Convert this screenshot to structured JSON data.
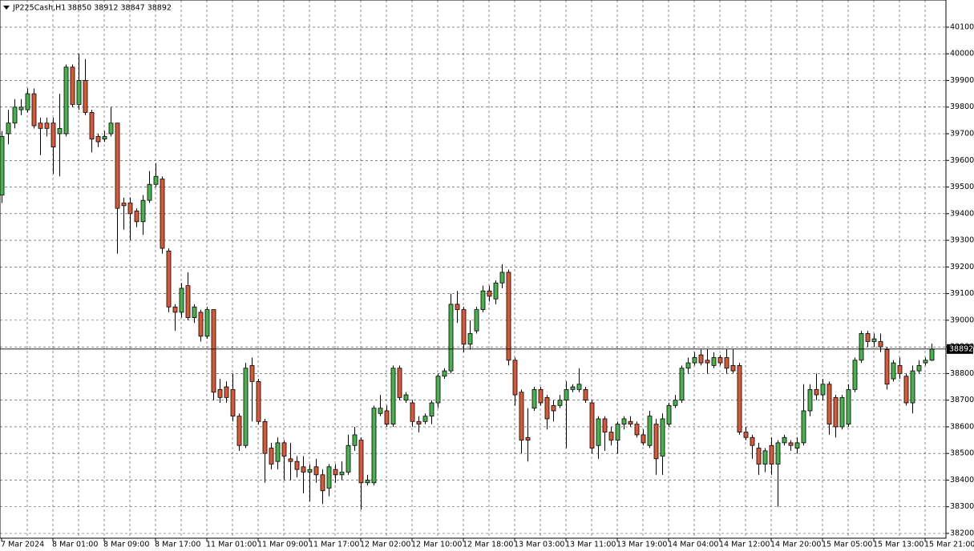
{
  "chart_data": {
    "type": "candlestick",
    "title": "JP225Cash,H1",
    "header_values": "38850 38912 38847 38892",
    "categories": [
      "7 Mar 2024",
      null,
      null,
      null,
      null,
      null,
      null,
      null,
      "8 Mar 01:00",
      null,
      null,
      null,
      null,
      null,
      null,
      null,
      "8 Mar 09:00",
      null,
      null,
      null,
      null,
      null,
      null,
      null,
      "8 Mar 17:00",
      null,
      null,
      null,
      null,
      null,
      null,
      null,
      "11 Mar 01:00",
      null,
      null,
      null,
      null,
      null,
      null,
      null,
      "11 Mar 09:00",
      null,
      null,
      null,
      null,
      null,
      null,
      null,
      "11 Mar 17:00",
      null,
      null,
      null,
      null,
      null,
      null,
      null,
      "12 Mar 02:00",
      null,
      null,
      null,
      null,
      null,
      null,
      null,
      "12 Mar 10:00",
      null,
      null,
      null,
      null,
      null,
      null,
      null,
      "12 Mar 18:00",
      null,
      null,
      null,
      null,
      null,
      null,
      null,
      "13 Mar 03:00",
      null,
      null,
      null,
      null,
      null,
      null,
      null,
      "13 Mar 11:00",
      null,
      null,
      null,
      null,
      null,
      null,
      null,
      "13 Mar 19:00",
      null,
      null,
      null,
      null,
      null,
      null,
      null,
      "14 Mar 04:00",
      null,
      null,
      null,
      null,
      null,
      null,
      null,
      "14 Mar 12:00",
      null,
      null,
      null,
      null,
      null,
      null,
      null,
      "14 Mar 20:00",
      null,
      null,
      null,
      null,
      null,
      null,
      null,
      "15 Mar 05:00",
      null,
      null,
      null,
      null,
      null,
      null,
      null,
      "15 Mar 13:00",
      null,
      null,
      null,
      null,
      null,
      null,
      null,
      "15 Mar 21:00",
      null
    ],
    "open": [
      39470,
      39700,
      39740,
      39790,
      39790,
      39850,
      39740,
      39740,
      39740,
      39700,
      39700,
      39950,
      39810,
      39900,
      39780,
      39690,
      39680,
      39700,
      39740,
      39440,
      39440,
      39410,
      39370,
      39450,
      39510,
      39530,
      39260,
      39050,
      39030,
      39130,
      39010,
      39030,
      38940,
      39040,
      38740,
      38750,
      38740,
      38640,
      38530,
      38830,
      38770,
      38620,
      38520,
      38470,
      38540,
      38480,
      38470,
      38450,
      38430,
      38450,
      38420,
      38370,
      38440,
      38420,
      38430,
      38530,
      38550,
      38390,
      38390,
      38650,
      38660,
      38610,
      38820,
      38700,
      38690,
      38620,
      38620,
      38640,
      38690,
      38790,
      38810,
      39060,
      39040,
      38910,
      38960,
      39040,
      39110,
      39080,
      39140,
      39180,
      38850,
      38730,
      38560,
      38670,
      38740,
      38710,
      38680,
      38680,
      38700,
      38740,
      38740,
      38740,
      38690,
      38530,
      38630,
      38580,
      38550,
      38610,
      38620,
      38610,
      38570,
      38530,
      38610,
      38490,
      38610,
      38680,
      38700,
      38820,
      38840,
      38870,
      38850,
      38830,
      38860,
      38860,
      38830,
      38830,
      38580,
      38560,
      38520,
      38460,
      38530,
      38460,
      38540,
      38540,
      38520,
      38540,
      38660,
      38740,
      38720,
      38760,
      38710,
      38600,
      38610,
      38740,
      38850,
      38950,
      38920,
      38920,
      38890,
      38780,
      38830,
      38790,
      38690,
      38810,
      38840,
      38850
    ],
    "high": [
      39710,
      39790,
      39830,
      39830,
      39870,
      39870,
      39760,
      39760,
      39760,
      39850,
      39960,
      39960,
      40000,
      39980,
      39790,
      39700,
      39710,
      39800,
      39740,
      39460,
      39460,
      39420,
      39470,
      39560,
      39590,
      39540,
      39270,
      39060,
      39140,
      39180,
      39060,
      39040,
      39050,
      39040,
      38780,
      38770,
      38800,
      38650,
      38840,
      38860,
      38780,
      38630,
      38540,
      38560,
      38550,
      38540,
      38490,
      38490,
      38460,
      38480,
      38440,
      38460,
      38460,
      38470,
      38570,
      38600,
      38560,
      38420,
      38680,
      38720,
      38680,
      38830,
      38830,
      38730,
      38700,
      38640,
      38650,
      38700,
      38800,
      38820,
      39100,
      39110,
      39050,
      39000,
      39050,
      39130,
      39130,
      39150,
      39210,
      39190,
      38860,
      38740,
      38670,
      38750,
      38750,
      38720,
      38700,
      38720,
      38770,
      38760,
      38820,
      38750,
      38700,
      38640,
      38640,
      38600,
      38620,
      38640,
      38640,
      38620,
      38590,
      38660,
      38630,
      38650,
      38690,
      38720,
      38830,
      38860,
      38880,
      38890,
      38890,
      38880,
      38870,
      38890,
      38890,
      38840,
      38600,
      38570,
      38540,
      38520,
      38560,
      38550,
      38570,
      38550,
      38560,
      38760,
      38760,
      38800,
      38780,
      38770,
      38720,
      38720,
      38760,
      38860,
      38960,
      38960,
      38950,
      38950,
      38900,
      38850,
      38860,
      38800,
      38830,
      38850,
      38860,
      38912
    ],
    "low": [
      39440,
      39660,
      39720,
      39770,
      39780,
      39720,
      39620,
      39690,
      39550,
      39540,
      39690,
      39800,
      39790,
      39770,
      39630,
      39650,
      39670,
      39690,
      39250,
      39340,
      39300,
      39350,
      39320,
      39440,
      39500,
      39250,
      39030,
      38960,
      39010,
      39000,
      38990,
      38920,
      38930,
      38700,
      38690,
      38690,
      38620,
      38510,
      38520,
      38620,
      38610,
      38390,
      38440,
      38440,
      38400,
      38400,
      38410,
      38350,
      38320,
      38390,
      38310,
      38340,
      38390,
      38400,
      38420,
      38510,
      38290,
      38380,
      38380,
      38640,
      38600,
      38600,
      38700,
      38690,
      38600,
      38580,
      38610,
      38610,
      38670,
      38780,
      38800,
      38990,
      38880,
      38890,
      38950,
      39030,
      39070,
      39060,
      39120,
      38830,
      38680,
      38500,
      38470,
      38660,
      38680,
      38590,
      38620,
      38670,
      38520,
      38730,
      38730,
      38690,
      38500,
      38480,
      38510,
      38530,
      38500,
      38590,
      38600,
      38560,
      38530,
      38520,
      38420,
      38420,
      38600,
      38670,
      38690,
      38800,
      38830,
      38830,
      38800,
      38820,
      38830,
      38800,
      38800,
      38570,
      38550,
      38480,
      38420,
      38430,
      38420,
      38300,
      38530,
      38510,
      38500,
      38530,
      38640,
      38700,
      38700,
      38570,
      38560,
      38590,
      38600,
      38730,
      38840,
      38900,
      38900,
      38880,
      38740,
      38770,
      38780,
      38680,
      38650,
      38800,
      38830,
      38847
    ],
    "close": [
      39690,
      39740,
      39800,
      39800,
      39850,
      39730,
      39720,
      39720,
      39650,
      39720,
      39950,
      39810,
      39900,
      39780,
      39680,
      39670,
      39690,
      39740,
      39420,
      39430,
      39400,
      39370,
      39450,
      39510,
      39540,
      39270,
      39050,
      39030,
      39120,
      39010,
      39050,
      38940,
      39040,
      38730,
      38710,
      38710,
      38640,
      38530,
      38820,
      38770,
      38620,
      38500,
      38460,
      38540,
      38490,
      38470,
      38440,
      38430,
      38440,
      38420,
      38360,
      38450,
      38420,
      38430,
      38530,
      38570,
      38390,
      38400,
      38670,
      38670,
      38610,
      38820,
      38710,
      38720,
      38620,
      38610,
      38640,
      38690,
      38790,
      38810,
      39060,
      39040,
      38910,
      38950,
      39040,
      39110,
      39090,
      39140,
      39180,
      38850,
      38720,
      38550,
      38550,
      38740,
      38690,
      38630,
      38660,
      38700,
      38740,
      38750,
      38760,
      38700,
      38520,
      38630,
      38580,
      38550,
      38610,
      38630,
      38610,
      38570,
      38540,
      38640,
      38480,
      38630,
      38680,
      38700,
      38820,
      38840,
      38860,
      38840,
      38840,
      38860,
      38840,
      38820,
      38810,
      38580,
      38560,
      38530,
      38460,
      38510,
      38460,
      38540,
      38560,
      38530,
      38540,
      38660,
      38740,
      38720,
      38760,
      38610,
      38600,
      38710,
      38740,
      38850,
      38950,
      38920,
      38930,
      38900,
      38760,
      38840,
      38800,
      38690,
      38810,
      38830,
      38850,
      38892
    ],
    "up_color": "#4caf50",
    "down_color": "#d45a3c",
    "last_price": 38892,
    "ylim": [
      38182,
      40202
    ],
    "yticks": [
      38200,
      38300,
      38400,
      38500,
      38600,
      38700,
      38800,
      38900,
      39000,
      39100,
      39200,
      39300,
      39400,
      39500,
      39600,
      39700,
      39800,
      39900,
      40000,
      40100
    ],
    "grid": true
  }
}
